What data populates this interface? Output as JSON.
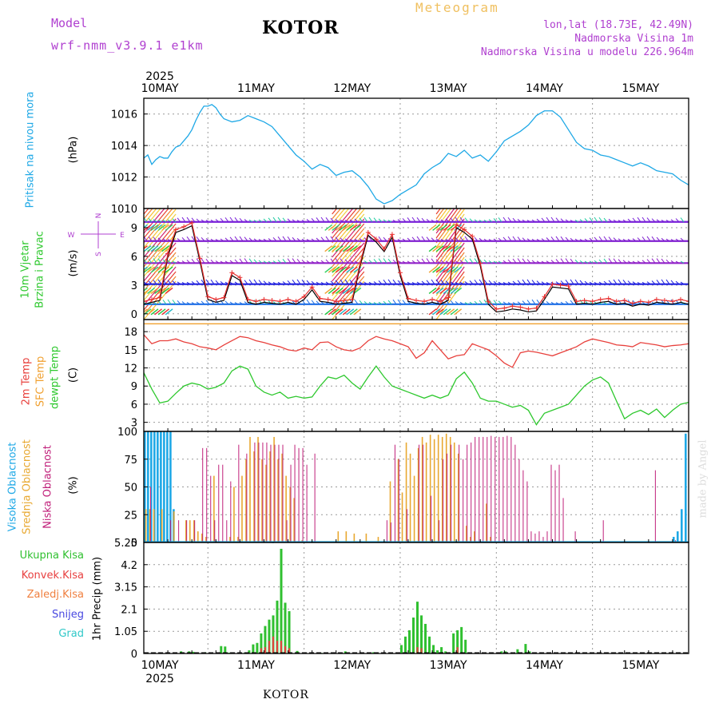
{
  "header": {
    "model_label": "Model",
    "model_name": "wrf-nmm_v3.9.1 e1km",
    "station": "KOTOR",
    "title": "Meteogram",
    "coords": "lon,lat (18.73E, 42.49N)",
    "elevation": "Nadmorska Visina 1m",
    "model_elevation": "Nadmorska Visina u modelu 226.964m",
    "footer_station": "KOTOR",
    "watermark": "made by Angel"
  },
  "colors": {
    "pressure": "#1ea8e6",
    "temp2m": "#e8403c",
    "sfc_temp": "#f0a030",
    "dewpt": "#2ec82e",
    "high_cloud": "#1ea8e6",
    "mid_cloud": "#e8a830",
    "low_cloud": "#c0207a",
    "purple_label": "#b040d0",
    "precip_total": "#30c030",
    "precip_conv": "#e84040",
    "precip_frozen": "#f08040",
    "snow": "#4848e0",
    "graupel": "#30c8c8",
    "wind_blue": "#2020e0",
    "wind_red": "#e83030"
  },
  "time_axis": {
    "year": "2025",
    "days": [
      "10MAY",
      "11MAY",
      "12MAY",
      "13MAY",
      "14MAY",
      "15MAY"
    ],
    "start_hour": 8,
    "end_hour": 144
  },
  "chart_data": [
    {
      "type": "line",
      "name": "pressure",
      "ylabel": [
        "Pritisak na nivou mora",
        "(hPa)"
      ],
      "ylim": [
        1010,
        1017
      ],
      "yticks": [
        1010,
        1012,
        1014,
        1016
      ],
      "x": [
        8,
        9,
        10,
        11,
        12,
        13,
        14,
        15,
        16,
        17,
        18,
        19,
        20,
        21,
        22,
        23,
        24,
        25,
        26,
        27,
        28,
        30,
        32,
        34,
        36,
        38,
        40,
        42,
        44,
        46,
        48,
        50,
        52,
        54,
        56,
        58,
        60,
        62,
        64,
        66,
        68,
        70,
        72,
        74,
        76,
        78,
        80,
        82,
        84,
        86,
        88,
        90,
        92,
        94,
        96,
        98,
        100,
        102,
        104,
        106,
        108,
        110,
        112,
        114,
        116,
        118,
        120,
        122,
        124,
        126,
        128,
        130,
        132,
        134,
        136,
        138,
        140,
        142,
        144
      ],
      "y": [
        1013.2,
        1013.4,
        1012.8,
        1013.1,
        1013.3,
        1013.2,
        1013.2,
        1013.6,
        1013.9,
        1014.0,
        1014.3,
        1014.6,
        1015.0,
        1015.6,
        1016.1,
        1016.5,
        1016.5,
        1016.6,
        1016.4,
        1016.0,
        1015.7,
        1015.5,
        1015.6,
        1015.9,
        1015.7,
        1015.5,
        1015.2,
        1014.6,
        1014.0,
        1013.4,
        1013.0,
        1012.5,
        1012.8,
        1012.6,
        1012.1,
        1012.3,
        1012.4,
        1012.0,
        1011.4,
        1010.6,
        1010.3,
        1010.5,
        1010.9,
        1011.2,
        1011.5,
        1012.2,
        1012.6,
        1012.9,
        1013.5,
        1013.3,
        1013.7,
        1013.2,
        1013.4,
        1013.0,
        1013.6,
        1014.3,
        1014.6,
        1014.9,
        1015.3,
        1015.9,
        1016.2,
        1016.2,
        1015.8,
        1015.0,
        1014.2,
        1013.8,
        1013.7,
        1013.4,
        1013.3,
        1013.1,
        1012.9,
        1012.7,
        1012.9,
        1012.7,
        1012.4,
        1012.3,
        1012.2,
        1011.8,
        1011.5
      ]
    },
    {
      "type": "line",
      "name": "wind",
      "ylabel": [
        "10m Vjetar",
        "Brzina i Pravac",
        "(m/s)"
      ],
      "compass": [
        "N",
        "W",
        "E",
        "S"
      ],
      "ylim": [
        -0.6,
        11
      ],
      "yticks": [
        0,
        3,
        6,
        9
      ],
      "level_rows": [
        1.0,
        3.1,
        5.3,
        7.6,
        9.6
      ],
      "gust_bands": [
        [
          8,
          16
        ],
        [
          55,
          63
        ],
        [
          81,
          88
        ]
      ],
      "x": [
        8,
        10,
        12,
        14,
        16,
        18,
        20,
        22,
        24,
        26,
        28,
        30,
        32,
        34,
        36,
        38,
        40,
        42,
        44,
        46,
        48,
        50,
        52,
        54,
        56,
        58,
        60,
        62,
        64,
        66,
        68,
        70,
        72,
        74,
        76,
        78,
        80,
        82,
        84,
        86,
        88,
        90,
        92,
        94,
        96,
        98,
        100,
        102,
        104,
        106,
        108,
        110,
        112,
        114,
        116,
        118,
        120,
        122,
        124,
        126,
        128,
        130,
        132,
        134,
        136,
        138,
        140,
        142,
        144
      ],
      "y": [
        1.0,
        1.2,
        1.4,
        6.0,
        8.5,
        8.8,
        9.2,
        5.5,
        1.5,
        1.2,
        1.4,
        4.0,
        3.5,
        1.2,
        1.0,
        1.2,
        1.1,
        1.0,
        1.2,
        1.0,
        1.5,
        2.5,
        1.3,
        1.2,
        1.0,
        1.1,
        1.2,
        5.0,
        8.2,
        7.5,
        6.5,
        8.0,
        4.0,
        1.3,
        1.1,
        1.0,
        1.2,
        1.0,
        1.4,
        9.0,
        8.5,
        7.8,
        5.0,
        1.0,
        0.2,
        0.3,
        0.5,
        0.4,
        0.2,
        0.3,
        1.5,
        2.8,
        2.7,
        2.6,
        1.0,
        1.1,
        1.0,
        1.2,
        1.3,
        1.0,
        1.1,
        0.8,
        1.0,
        0.9,
        1.2,
        1.1,
        1.0,
        1.2,
        1.0
      ]
    },
    {
      "type": "line",
      "name": "temperature",
      "ylabel": [
        "2m Temp",
        "SFC Temp",
        "dewpt Temp",
        "(C)"
      ],
      "ylim": [
        1.5,
        20
      ],
      "yticks": [
        3,
        6,
        9,
        12,
        15,
        18
      ],
      "sfc_temp": 19.3,
      "x": [
        8,
        10,
        12,
        14,
        16,
        18,
        20,
        22,
        24,
        26,
        28,
        30,
        32,
        34,
        36,
        38,
        40,
        42,
        44,
        46,
        48,
        50,
        52,
        54,
        56,
        58,
        60,
        62,
        64,
        66,
        68,
        70,
        72,
        74,
        76,
        78,
        80,
        82,
        84,
        86,
        88,
        90,
        92,
        94,
        96,
        98,
        100,
        102,
        104,
        106,
        108,
        110,
        112,
        114,
        116,
        118,
        120,
        122,
        124,
        126,
        128,
        130,
        132,
        134,
        136,
        138,
        140,
        142,
        144
      ],
      "temp2m": [
        17.5,
        16.0,
        16.5,
        16.5,
        16.8,
        16.3,
        16.0,
        15.5,
        15.3,
        15.0,
        15.8,
        16.5,
        17.2,
        17.0,
        16.5,
        16.2,
        15.8,
        15.5,
        15.0,
        14.8,
        15.3,
        15.0,
        16.2,
        16.3,
        15.5,
        15.0,
        14.8,
        15.3,
        16.5,
        17.2,
        16.8,
        16.5,
        16.0,
        15.5,
        13.6,
        14.5,
        16.5,
        15.0,
        13.5,
        14.0,
        14.2,
        16.0,
        15.5,
        15.0,
        14.0,
        12.8,
        12.1,
        14.5,
        14.8,
        14.6,
        14.3,
        14.0,
        14.5,
        15.0,
        15.5,
        16.3,
        16.8,
        16.5,
        16.2,
        15.8,
        15.7,
        15.5,
        16.2,
        16.0,
        15.8,
        15.5,
        15.7,
        15.8,
        16.0
      ],
      "dewpt": [
        11.2,
        8.5,
        6.2,
        6.5,
        7.8,
        9.0,
        9.5,
        9.2,
        8.5,
        8.8,
        9.5,
        11.5,
        12.3,
        11.8,
        9.0,
        8.0,
        7.5,
        8.0,
        7.0,
        7.3,
        7.0,
        7.2,
        9.0,
        10.5,
        10.2,
        10.8,
        9.5,
        8.5,
        10.5,
        12.3,
        10.5,
        9.0,
        8.5,
        8.0,
        7.5,
        7.0,
        7.5,
        7.0,
        7.5,
        10.2,
        11.3,
        9.5,
        7.0,
        6.5,
        6.5,
        6.0,
        5.5,
        5.8,
        5.0,
        2.6,
        4.5,
        5.0,
        5.5,
        6.0,
        7.5,
        9.0,
        10.0,
        10.5,
        9.5,
        6.5,
        3.6,
        4.5,
        5.0,
        4.3,
        5.2,
        3.8,
        5.0,
        6.0,
        6.3
      ]
    },
    {
      "type": "bar",
      "name": "cloud",
      "ylabel": [
        "Visoka Oblacnost",
        "Srednja Oblacnost",
        "Niska Oblacnost",
        "(%)"
      ],
      "ylim": [
        0,
        100
      ],
      "yticks": [
        0,
        25,
        50,
        75,
        100
      ],
      "high": [
        [
          8,
          100
        ],
        [
          8.8,
          100
        ],
        [
          9.6,
          100
        ],
        [
          10.4,
          100
        ],
        [
          11.2,
          100
        ],
        [
          12,
          100
        ],
        [
          12.8,
          100
        ],
        [
          13.6,
          100
        ],
        [
          14.4,
          100
        ],
        [
          15.2,
          30
        ],
        [
          40,
          0
        ],
        [
          80,
          1
        ],
        [
          140,
          5
        ],
        [
          141,
          10
        ],
        [
          142,
          30
        ],
        [
          143,
          98
        ]
      ],
      "mid": [
        [
          8,
          30
        ],
        [
          9,
          30
        ],
        [
          10,
          30
        ],
        [
          12,
          30
        ],
        [
          15,
          28
        ],
        [
          18,
          20
        ],
        [
          19,
          20
        ],
        [
          20,
          20
        ],
        [
          21,
          10
        ],
        [
          22,
          8
        ],
        [
          23,
          5
        ],
        [
          25,
          60
        ],
        [
          29,
          5
        ],
        [
          30,
          50
        ],
        [
          31,
          5
        ],
        [
          32,
          60
        ],
        [
          33,
          75
        ],
        [
          34,
          95
        ],
        [
          35,
          82
        ],
        [
          36,
          95
        ],
        [
          37,
          75
        ],
        [
          38,
          70
        ],
        [
          39,
          82
        ],
        [
          40,
          95
        ],
        [
          41,
          75
        ],
        [
          42,
          80
        ],
        [
          43,
          60
        ],
        [
          44,
          50
        ],
        [
          45,
          40
        ],
        [
          47,
          2
        ],
        [
          56,
          10
        ],
        [
          58,
          10
        ],
        [
          60,
          8
        ],
        [
          63,
          8
        ],
        [
          66,
          5
        ],
        [
          69,
          55
        ],
        [
          71,
          75
        ],
        [
          72,
          45
        ],
        [
          73,
          90
        ],
        [
          74,
          80
        ],
        [
          75,
          60
        ],
        [
          76,
          85
        ],
        [
          77,
          95
        ],
        [
          78,
          90
        ],
        [
          79,
          97
        ],
        [
          80,
          93
        ],
        [
          81,
          97
        ],
        [
          82,
          95
        ],
        [
          83,
          98
        ],
        [
          84,
          95
        ],
        [
          85,
          90
        ],
        [
          86,
          80
        ],
        [
          88,
          15
        ],
        [
          89,
          5
        ],
        [
          90,
          10
        ],
        [
          93,
          35
        ],
        [
          94,
          5
        ]
      ],
      "low": [
        [
          9,
          50
        ],
        [
          14,
          20
        ],
        [
          16,
          20
        ],
        [
          18,
          20
        ],
        [
          20,
          20
        ],
        [
          22,
          85
        ],
        [
          23,
          85
        ],
        [
          24,
          60
        ],
        [
          25,
          20
        ],
        [
          26,
          70
        ],
        [
          27,
          70
        ],
        [
          28,
          20
        ],
        [
          29,
          55
        ],
        [
          31,
          88
        ],
        [
          33,
          80
        ],
        [
          35,
          90
        ],
        [
          36,
          90
        ],
        [
          37,
          90
        ],
        [
          38,
          90
        ],
        [
          39,
          88
        ],
        [
          40,
          88
        ],
        [
          41,
          88
        ],
        [
          42,
          88
        ],
        [
          43,
          20
        ],
        [
          44,
          70
        ],
        [
          45,
          88
        ],
        [
          46,
          85
        ],
        [
          47,
          85
        ],
        [
          48,
          70
        ],
        [
          50,
          80
        ],
        [
          68,
          20
        ],
        [
          69,
          18
        ],
        [
          70,
          88
        ],
        [
          71,
          75
        ],
        [
          73,
          30
        ],
        [
          76,
          88
        ],
        [
          77,
          88
        ],
        [
          79,
          42
        ],
        [
          81,
          20
        ],
        [
          82,
          75
        ],
        [
          83,
          80
        ],
        [
          84,
          88
        ],
        [
          86,
          88
        ],
        [
          87,
          75
        ],
        [
          88,
          88
        ],
        [
          89,
          90
        ],
        [
          90,
          95
        ],
        [
          91,
          95
        ],
        [
          92,
          95
        ],
        [
          93,
          95
        ],
        [
          94,
          96
        ],
        [
          95,
          95
        ],
        [
          96,
          95
        ],
        [
          97,
          95
        ],
        [
          98,
          96
        ],
        [
          99,
          95
        ],
        [
          100,
          88
        ],
        [
          101,
          75
        ],
        [
          102,
          65
        ],
        [
          103,
          55
        ],
        [
          104,
          10
        ],
        [
          105,
          8
        ],
        [
          106,
          10
        ],
        [
          107,
          5
        ],
        [
          108,
          10
        ],
        [
          109,
          70
        ],
        [
          110,
          65
        ],
        [
          111,
          70
        ],
        [
          112,
          40
        ],
        [
          115,
          10
        ],
        [
          122,
          20
        ],
        [
          135,
          65
        ],
        [
          140,
          2
        ]
      ]
    },
    {
      "type": "bar",
      "name": "precip",
      "ylabel": [
        "Ukupna Kisa",
        "Konvek.Kisa",
        "Zaledj.Kisa",
        "Snijeg",
        "Grad",
        "1hr Precip (mm)"
      ],
      "ylim": [
        0,
        5.25
      ],
      "yticks": [
        0,
        1.05,
        2.1,
        3.15,
        4.2,
        5.25
      ],
      "ytick_labels": [
        "0",
        "1.05",
        "2.1",
        "3.15",
        "4.2",
        "5.25"
      ],
      "total": [
        [
          17,
          0.1
        ],
        [
          19,
          0.1
        ],
        [
          20,
          0.08
        ],
        [
          23,
          0.06
        ],
        [
          27,
          0.35
        ],
        [
          28,
          0.33
        ],
        [
          29,
          0.04
        ],
        [
          30,
          0.02
        ],
        [
          33,
          0.05
        ],
        [
          34,
          0.15
        ],
        [
          35,
          0.43
        ],
        [
          36,
          0.5
        ],
        [
          37,
          0.95
        ],
        [
          38,
          1.3
        ],
        [
          39,
          1.6
        ],
        [
          40,
          1.8
        ],
        [
          41,
          2.5
        ],
        [
          42,
          4.95
        ],
        [
          43,
          2.4
        ],
        [
          44,
          2.0
        ],
        [
          46,
          0.12
        ],
        [
          52,
          0.03
        ],
        [
          58,
          0.1
        ],
        [
          65,
          0.06
        ],
        [
          72,
          0.4
        ],
        [
          73,
          0.8
        ],
        [
          74,
          1.1
        ],
        [
          75,
          1.7
        ],
        [
          76,
          2.45
        ],
        [
          77,
          1.8
        ],
        [
          78,
          1.4
        ],
        [
          79,
          0.8
        ],
        [
          80,
          0.4
        ],
        [
          81,
          0.15
        ],
        [
          82,
          0.3
        ],
        [
          83,
          0.1
        ],
        [
          85,
          0.95
        ],
        [
          86,
          1.1
        ],
        [
          87,
          1.25
        ],
        [
          88,
          0.65
        ],
        [
          97,
          0.1
        ],
        [
          98,
          0.1
        ],
        [
          101,
          0.2
        ],
        [
          103,
          0.45
        ],
        [
          104,
          0.1
        ]
      ],
      "convective": [
        [
          37,
          0.25
        ],
        [
          38,
          0.3
        ],
        [
          39,
          0.6
        ],
        [
          40,
          0.8
        ],
        [
          41,
          0.6
        ],
        [
          42,
          0.6
        ],
        [
          43,
          0.35
        ],
        [
          44,
          0.25
        ],
        [
          76,
          0.3
        ],
        [
          77,
          0.25
        ],
        [
          86,
          0.3
        ]
      ]
    }
  ]
}
